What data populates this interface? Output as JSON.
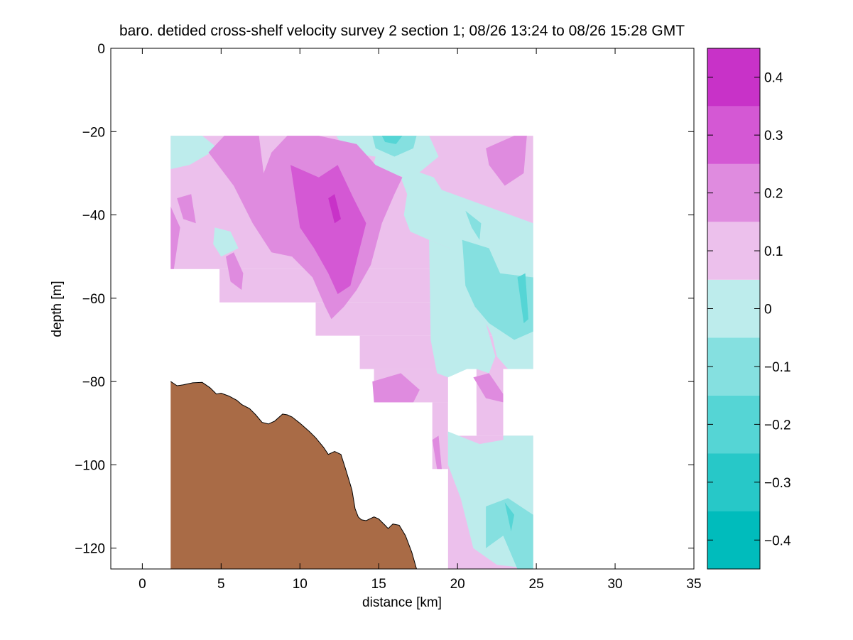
{
  "chart_data": {
    "type": "filled-contour",
    "title": "baro. detided cross-shelf velocity survey 2 section 1; 08/26 13:24 to 08/26 15:28 GMT",
    "xlabel": "distance [km]",
    "ylabel": "depth [m]",
    "xlim": [
      -2,
      35
    ],
    "ylim": [
      -125,
      0
    ],
    "xticks": [
      0,
      5,
      10,
      15,
      20,
      25,
      30,
      35
    ],
    "yticks": [
      -120,
      -100,
      -80,
      -60,
      -40,
      -20,
      0
    ],
    "colorbar": {
      "levels": [
        -0.45,
        -0.35,
        -0.25,
        -0.15,
        -0.05,
        0.05,
        0.15,
        0.25,
        0.35,
        0.45
      ],
      "colors": [
        "#00bcbc",
        "#27c8c8",
        "#55d5d5",
        "#85e0e0",
        "#bdecec",
        "#ecc0ec",
        "#df8bdf",
        "#d458d4",
        "#c832c8",
        "#bc00bc"
      ],
      "ticks": [
        -0.4,
        -0.3,
        -0.2,
        -0.1,
        0,
        0.1,
        0.2,
        0.3,
        0.4
      ],
      "tick_labels": [
        "−0.4",
        "−0.3",
        "−0.2",
        "−0.1",
        "0",
        "0.1",
        "0.2",
        "0.3",
        "0.4"
      ]
    },
    "bathymetry": {
      "color": "#a96b46",
      "x": [
        1.8,
        2.2,
        2.6,
        3.2,
        3.8,
        4.3,
        4.7,
        5.0,
        5.5,
        6.0,
        6.3,
        6.8,
        7.2,
        7.6,
        8.0,
        8.4,
        8.9,
        9.2,
        9.5,
        10.0,
        10.6,
        11.0,
        11.5,
        11.8,
        12.2,
        12.6,
        12.9,
        13.3,
        13.5,
        13.7,
        13.9,
        14.2,
        14.7,
        15.0,
        15.4,
        15.6,
        15.9,
        16.3,
        16.7,
        17.1,
        17.4
      ],
      "depth": [
        -80.0,
        -81.0,
        -80.8,
        -80.3,
        -80.2,
        -81.5,
        -83.0,
        -82.8,
        -83.5,
        -84.5,
        -85.5,
        -86.5,
        -88.0,
        -89.8,
        -90.2,
        -89.5,
        -87.8,
        -88.0,
        -88.5,
        -90.0,
        -92.0,
        -93.5,
        -95.8,
        -97.5,
        -96.8,
        -97.5,
        -101.0,
        -106.0,
        -110.5,
        -112.5,
        -113.2,
        -113.4,
        -112.5,
        -113.0,
        -114.5,
        -115.3,
        -114.2,
        -114.5,
        -117.0,
        -121.0,
        -125.0
      ]
    },
    "velocity_blocks": [
      {
        "x0": 1.8,
        "x1": 24.8,
        "y0": -21,
        "y1": -53,
        "v": 0.05
      },
      {
        "x0": 4.9,
        "x1": 24.8,
        "y0": -53,
        "y1": -61,
        "v": 0.05
      },
      {
        "x0": 11.0,
        "x1": 24.8,
        "y0": -61,
        "y1": -69,
        "v": 0.05
      },
      {
        "x0": 13.8,
        "x1": 24.8,
        "y0": -69,
        "y1": -77,
        "v": 0.05
      },
      {
        "x0": 14.7,
        "x1": 21.2,
        "y0": -77,
        "y1": -85,
        "v": 0.05
      },
      {
        "x0": 21.2,
        "x1": 22.9,
        "y0": -77,
        "y1": -93,
        "v": 0.05
      },
      {
        "x0": 18.4,
        "x1": 19.4,
        "y0": -85,
        "y1": -101,
        "v": 0.05
      },
      {
        "x0": 19.4,
        "x1": 24.8,
        "y0": -93,
        "y1": -125,
        "v": 0.05
      },
      {
        "x0": 19.4,
        "x1": 21.2,
        "y0": -77,
        "y1": -93,
        "v": null
      }
    ],
    "velocity_regions": [
      {
        "v": -0.05,
        "x": [
          1.8,
          3.8,
          4.8,
          3.0,
          1.8
        ],
        "depth": [
          -21,
          -21,
          -24,
          -28,
          -29
        ]
      },
      {
        "v": -0.05,
        "x": [
          12.3,
          18.2,
          18.8,
          17.2,
          14.5,
          14.8,
          13.0
        ],
        "depth": [
          -21,
          -21,
          -26,
          -31,
          -30,
          -26,
          -25
        ]
      },
      {
        "v": -0.05,
        "x": [
          17.0,
          18.5,
          19.0,
          24.8,
          24.8,
          23.2,
          22.5,
          22.2,
          21.8,
          21.0,
          20.5,
          20.2,
          19.8,
          19.5,
          18.2,
          17.0,
          16.6,
          16.8,
          16.4
        ],
        "depth": [
          -29,
          -31,
          -34,
          -42,
          -77,
          -77,
          -74,
          -69,
          -66,
          -62,
          -58,
          -55,
          -52,
          -48,
          -46,
          -44,
          -40,
          -35,
          -31
        ]
      },
      {
        "v": -0.05,
        "x": [
          18.2,
          19.5,
          20.2,
          21.0,
          21.8,
          22.4,
          22.0,
          21.2,
          20.6,
          20.0,
          19.4,
          18.7,
          18.3
        ],
        "depth": [
          -46,
          -48,
          -55,
          -62,
          -66,
          -74,
          -78,
          -77,
          -77,
          -78,
          -79,
          -78,
          -70
        ]
      },
      {
        "v": -0.05,
        "x": [
          19.4,
          21.4,
          22.9,
          22.9,
          24.8,
          24.8,
          22.5,
          21.0,
          20.2,
          19.4
        ],
        "depth": [
          -92,
          -95,
          -94,
          -93,
          -93,
          -125,
          -124,
          -120,
          -108,
          -100
        ]
      },
      {
        "v": -0.05,
        "x": [
          4.6,
          5.6,
          6.1,
          5.0,
          4.5
        ],
        "depth": [
          -43,
          -44,
          -48,
          -50,
          -47
        ]
      },
      {
        "v": -0.15,
        "x": [
          14.6,
          17.4,
          17.2,
          16.0,
          14.8
        ],
        "depth": [
          -21,
          -21,
          -24,
          -26,
          -24
        ]
      },
      {
        "v": -0.15,
        "x": [
          20.3,
          22.0,
          22.7,
          24.8,
          24.8,
          23.6,
          22.0,
          21.1,
          20.5
        ],
        "depth": [
          -46,
          -48,
          -54,
          -55,
          -68,
          -70,
          -66,
          -62,
          -57
        ]
      },
      {
        "v": -0.15,
        "x": [
          20.5,
          21.5,
          21.4,
          20.9
        ],
        "depth": [
          -39,
          -42,
          -46,
          -43
        ]
      },
      {
        "v": -0.15,
        "x": [
          21.8,
          23.2,
          24.8,
          24.8,
          23.8,
          22.9,
          21.8
        ],
        "depth": [
          -110,
          -108,
          -112,
          -125,
          -125,
          -117,
          -120
        ]
      },
      {
        "v": -0.25,
        "x": [
          15.2,
          16.5,
          16.1,
          15.4
        ],
        "depth": [
          -21,
          -21,
          -23,
          -22.5
        ]
      },
      {
        "v": -0.25,
        "x": [
          23.8,
          24.3,
          24.5,
          24.2
        ],
        "depth": [
          -55,
          -54,
          -65,
          -66
        ]
      },
      {
        "v": -0.25,
        "x": [
          23.0,
          23.6,
          23.4
        ],
        "depth": [
          -109,
          -112,
          -116
        ]
      },
      {
        "v": 0.15,
        "x": [
          4.2,
          5.2,
          7.4,
          7.7,
          8.2,
          9.2,
          11.2,
          13.6,
          14.8,
          16.5,
          16.0,
          15.2,
          14.5,
          13.6,
          12.8,
          12.0,
          11.6,
          10.8,
          9.5,
          8.2,
          7.0,
          5.8
        ],
        "depth": [
          -25,
          -21,
          -21,
          -30,
          -25,
          -21,
          -21,
          -23,
          -28,
          -31,
          -35,
          -42,
          -52,
          -58,
          -62,
          -65,
          -62,
          -55,
          -50,
          -49,
          -42,
          -33
        ]
      },
      {
        "v": 0.15,
        "x": [
          21.8,
          23.6,
          24.4,
          24.2,
          23.0,
          22.0
        ],
        "depth": [
          -24,
          -21,
          -21,
          -30,
          -33,
          -28
        ]
      },
      {
        "v": 0.15,
        "x": [
          1.8,
          2.4,
          2.0,
          1.8
        ],
        "depth": [
          -38,
          -43,
          -53,
          -53
        ]
      },
      {
        "v": 0.15,
        "x": [
          2.2,
          3.1,
          3.4,
          2.6
        ],
        "depth": [
          -36,
          -35,
          -42,
          -41
        ]
      },
      {
        "v": 0.15,
        "x": [
          5.3,
          5.8,
          6.4,
          6.3,
          5.6
        ],
        "depth": [
          -50,
          -49,
          -54,
          -58,
          -56
        ]
      },
      {
        "v": 0.15,
        "x": [
          14.6,
          16.4,
          17.6,
          17.2,
          14.7
        ],
        "depth": [
          -80,
          -78,
          -82,
          -85,
          -85
        ]
      },
      {
        "v": 0.15,
        "x": [
          18.4,
          18.8,
          19.0,
          18.7
        ],
        "depth": [
          -94,
          -93,
          -101,
          -101
        ]
      },
      {
        "v": 0.15,
        "x": [
          21.0,
          22.0,
          22.9,
          22.9,
          21.8
        ],
        "depth": [
          -79,
          -78,
          -83,
          -85,
          -84
        ]
      },
      {
        "v": 0.25,
        "x": [
          9.4,
          11.2,
          12.4,
          13.4,
          14.2,
          13.8,
          13.2,
          12.4,
          11.8,
          10.9,
          10.0
        ],
        "depth": [
          -28,
          -31,
          -28,
          -36,
          -42,
          -48,
          -57,
          -59,
          -54,
          -48,
          -43
        ]
      },
      {
        "v": 0.35,
        "x": [
          11.8,
          12.2,
          12.6,
          12.2
        ],
        "depth": [
          -36,
          -35,
          -41,
          -42
        ]
      }
    ]
  }
}
